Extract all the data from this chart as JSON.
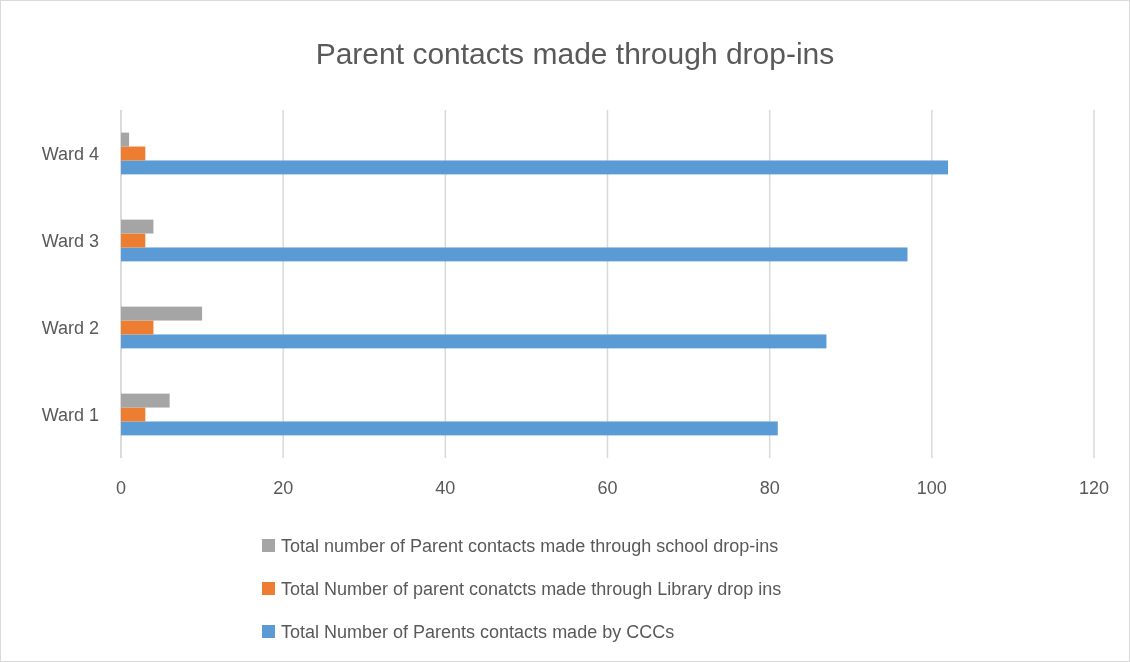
{
  "chart_data": {
    "type": "bar",
    "orientation": "horizontal",
    "title": "Parent contacts made through drop-ins",
    "categories": [
      "Ward 4",
      "Ward 3",
      "Ward 2",
      "Ward 1"
    ],
    "series": [
      {
        "name": "Total Number of Parents contacts made by CCCs",
        "color": "#5b9bd5",
        "values": [
          102,
          97,
          87,
          81
        ]
      },
      {
        "name": "Total Number of parent conatcts made through Library drop ins",
        "color": "#ed7d31",
        "values": [
          3,
          3,
          4,
          3
        ]
      },
      {
        "name": "Total number of Parent contacts made through school drop-ins",
        "color": "#a5a5a5",
        "values": [
          1,
          4,
          10,
          6
        ]
      }
    ],
    "xlim": [
      0,
      120
    ],
    "xticks": [
      0,
      20,
      40,
      60,
      80,
      100,
      120
    ],
    "grid": "x",
    "legend": "bottom"
  }
}
